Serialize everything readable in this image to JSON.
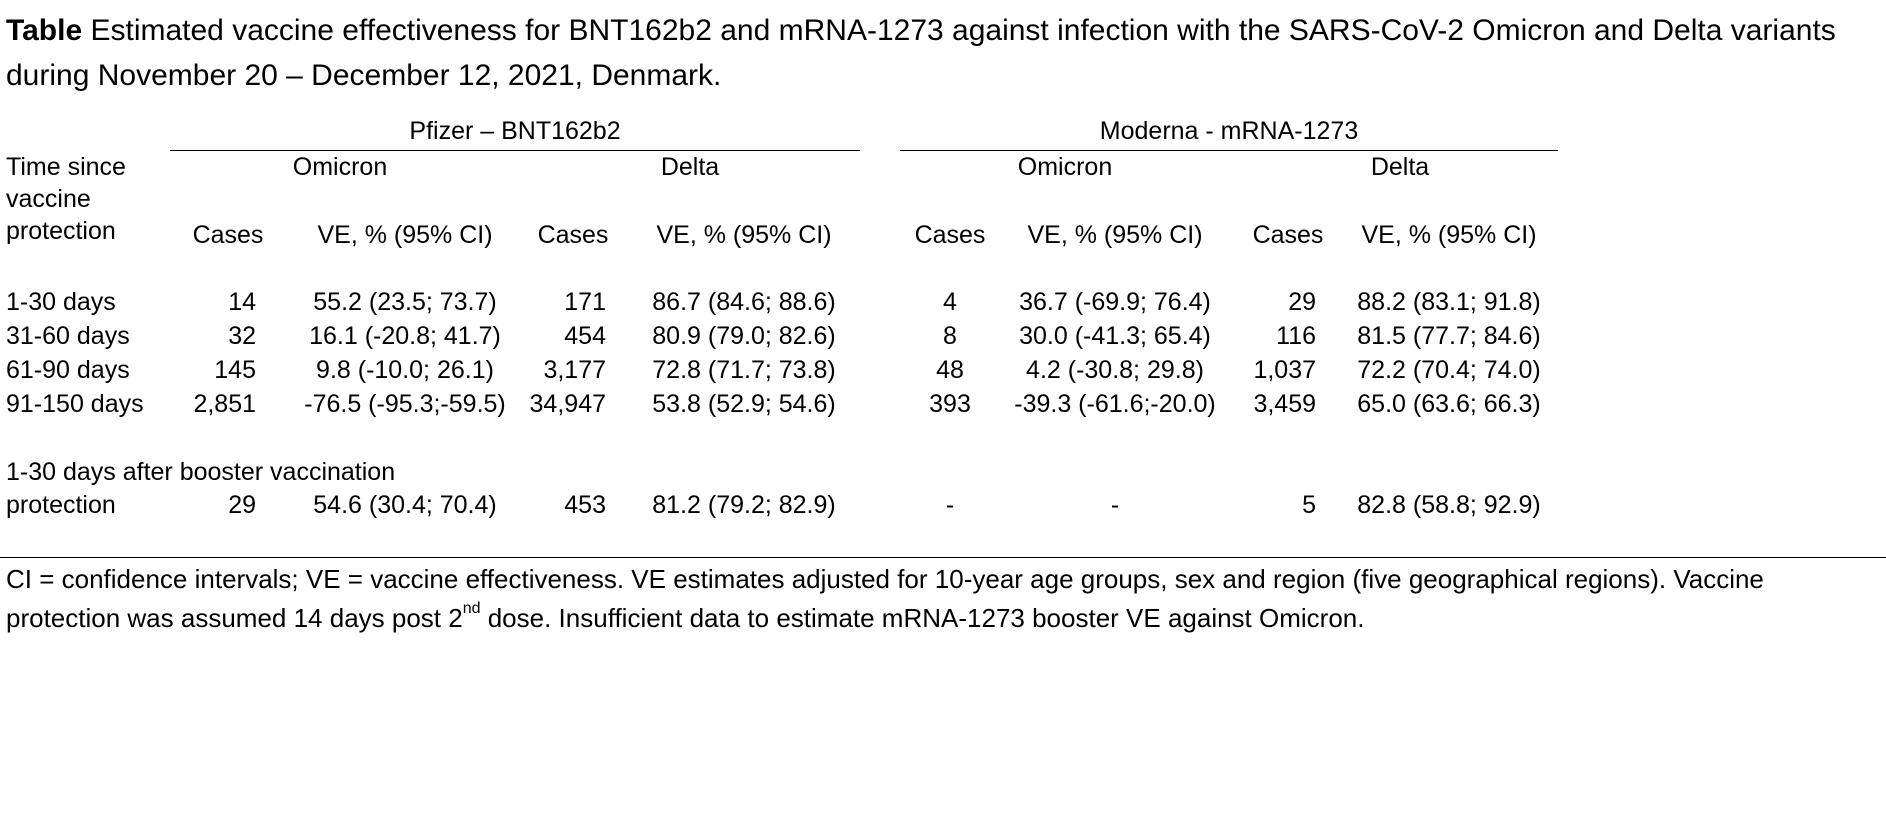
{
  "caption": {
    "label": "Table",
    "text": " Estimated vaccine effectiveness for BNT162b2 and mRNA-1273 against infection with the SARS-CoV-2 Omicron and Delta variants during November 20 – December 12, 2021, Denmark."
  },
  "groups": {
    "pfizer": "Pfizer – BNT162b2",
    "moderna": "Moderna - mRNA-1273"
  },
  "variants": {
    "omicron": "Omicron",
    "delta": "Delta"
  },
  "header": {
    "time_line1": "Time since",
    "time_line2": "vaccine",
    "time_line3": "protection",
    "cases": "Cases",
    "ve": "VE, % (95% CI)"
  },
  "rows": [
    {
      "label": "1-30 days",
      "p_om_cases": "14",
      "p_om_ve": "55.2 (23.5; 73.7)",
      "p_de_cases": "171",
      "p_de_ve": "86.7 (84.6; 88.6)",
      "m_om_cases": "4",
      "m_om_ve": "36.7 (-69.9; 76.4)",
      "m_de_cases": "29",
      "m_de_ve": "88.2 (83.1; 91.8)"
    },
    {
      "label": "31-60 days",
      "p_om_cases": "32",
      "p_om_ve": "16.1 (-20.8; 41.7)",
      "p_de_cases": "454",
      "p_de_ve": "80.9 (79.0; 82.6)",
      "m_om_cases": "8",
      "m_om_ve": "30.0 (-41.3; 65.4)",
      "m_de_cases": "116",
      "m_de_ve": "81.5 (77.7; 84.6)"
    },
    {
      "label": "61-90 days",
      "p_om_cases": "145",
      "p_om_ve": "9.8 (-10.0; 26.1)",
      "p_de_cases": "3,177",
      "p_de_ve": "72.8 (71.7; 73.8)",
      "m_om_cases": "48",
      "m_om_ve": "4.2 (-30.8; 29.8)",
      "m_de_cases": "1,037",
      "m_de_ve": "72.2 (70.4; 74.0)"
    },
    {
      "label": "91-150 days",
      "p_om_cases": "2,851",
      "p_om_ve": "-76.5 (-95.3;-59.5)",
      "p_de_cases": "34,947",
      "p_de_ve": "53.8 (52.9; 54.6)",
      "m_om_cases": "393",
      "m_om_ve": "-39.3 (-61.6;-20.0)",
      "m_de_cases": "3,459",
      "m_de_ve": "65.0 (63.6; 66.3)"
    }
  ],
  "booster": {
    "label_line1": "1-30 days after booster vaccination",
    "label_line2": "protection",
    "p_om_cases": "29",
    "p_om_ve": "54.6 (30.4; 70.4)",
    "p_de_cases": "453",
    "p_de_ve": "81.2 (79.2; 82.9)",
    "m_om_cases": "-",
    "m_om_ve": "-",
    "m_de_cases": "5",
    "m_de_ve": "82.8 (58.8; 92.9)"
  },
  "footnote": {
    "part1": "CI = confidence intervals; VE = vaccine effectiveness. VE estimates adjusted for 10-year age groups, sex and region (five geographical regions). Vaccine protection was assumed 14 days post 2",
    "sup": "nd",
    "part2": " dose. Insufficient data to estimate mRNA-1273 booster VE against Omicron."
  }
}
